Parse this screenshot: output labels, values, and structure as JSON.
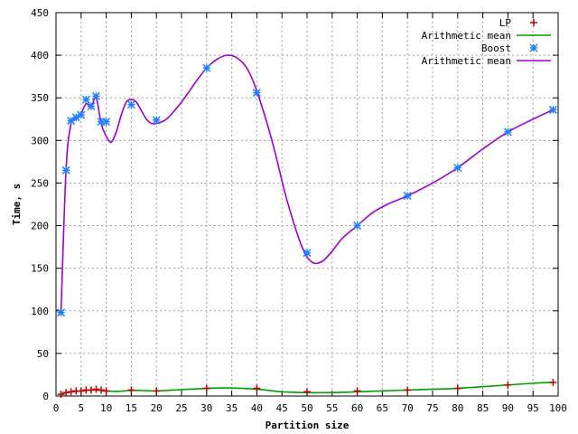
{
  "chart_data": {
    "type": "line",
    "title": "",
    "xlabel": "Partition size",
    "ylabel": "Time, s",
    "xlim": [
      0,
      100
    ],
    "ylim": [
      0,
      450
    ],
    "xticks": [
      0,
      5,
      10,
      15,
      20,
      25,
      30,
      35,
      40,
      45,
      50,
      55,
      60,
      65,
      70,
      75,
      80,
      85,
      90,
      95,
      100
    ],
    "yticks": [
      0,
      50,
      100,
      150,
      200,
      250,
      300,
      350,
      400,
      450
    ],
    "grid": true,
    "legend_position": "top-right",
    "series": [
      {
        "name": "LP",
        "style": "points",
        "marker": "plus",
        "color": "#c00000",
        "x": [
          1,
          2,
          3,
          4,
          5,
          6,
          7,
          8,
          9,
          10,
          15,
          20,
          30,
          40,
          50,
          60,
          70,
          80,
          90,
          99
        ],
        "y": [
          2,
          4,
          5,
          6,
          6,
          7,
          7,
          8,
          7,
          6,
          7,
          6,
          9,
          9,
          5,
          6,
          7,
          9,
          13,
          16
        ]
      },
      {
        "name": "Arithmetic mean",
        "style": "line",
        "color": "#00a000",
        "x": [
          1,
          2,
          3,
          4,
          5,
          6,
          7,
          8,
          9,
          10,
          12,
          15,
          17,
          20,
          25,
          30,
          34,
          40,
          45,
          50,
          55,
          60,
          65,
          70,
          75,
          80,
          85,
          90,
          95,
          99
        ],
        "y": [
          2,
          4,
          5,
          5.5,
          6,
          6.5,
          7,
          7,
          6.5,
          6,
          5.5,
          6.5,
          6.5,
          6,
          7.5,
          9,
          9.5,
          8,
          5,
          4,
          4,
          5,
          6,
          7,
          8,
          9,
          11,
          13,
          15,
          16
        ]
      },
      {
        "name": "Boost",
        "style": "points",
        "marker": "star",
        "color": "#2080ff",
        "x": [
          1,
          2,
          3,
          4,
          5,
          6,
          7,
          8,
          9,
          10,
          15,
          20,
          30,
          40,
          50,
          60,
          70,
          80,
          90,
          99
        ],
        "y": [
          98,
          265,
          323,
          327,
          330,
          348,
          340,
          352,
          322,
          322,
          342,
          324,
          385,
          356,
          168,
          200,
          235,
          268,
          310,
          336
        ]
      },
      {
        "name": "Arithmetic mean",
        "style": "line",
        "color": "#a000d0",
        "x": [
          1,
          2,
          3,
          4,
          5,
          6,
          7,
          8,
          9,
          10,
          11,
          12,
          13,
          14,
          15,
          16,
          17,
          18,
          19,
          20,
          22,
          25,
          28,
          30,
          32,
          34,
          36,
          38,
          40,
          43,
          46,
          49,
          51,
          53,
          55,
          57,
          60,
          63,
          66,
          70,
          75,
          80,
          85,
          90,
          95,
          99
        ],
        "y": [
          98,
          265,
          320,
          325,
          332,
          343,
          340,
          350,
          320,
          305,
          298,
          310,
          330,
          345,
          348,
          345,
          335,
          325,
          320,
          320,
          325,
          345,
          370,
          385,
          395,
          400,
          397,
          385,
          358,
          300,
          230,
          175,
          157,
          158,
          170,
          185,
          200,
          215,
          225,
          235,
          250,
          268,
          290,
          310,
          325,
          336
        ]
      }
    ]
  }
}
